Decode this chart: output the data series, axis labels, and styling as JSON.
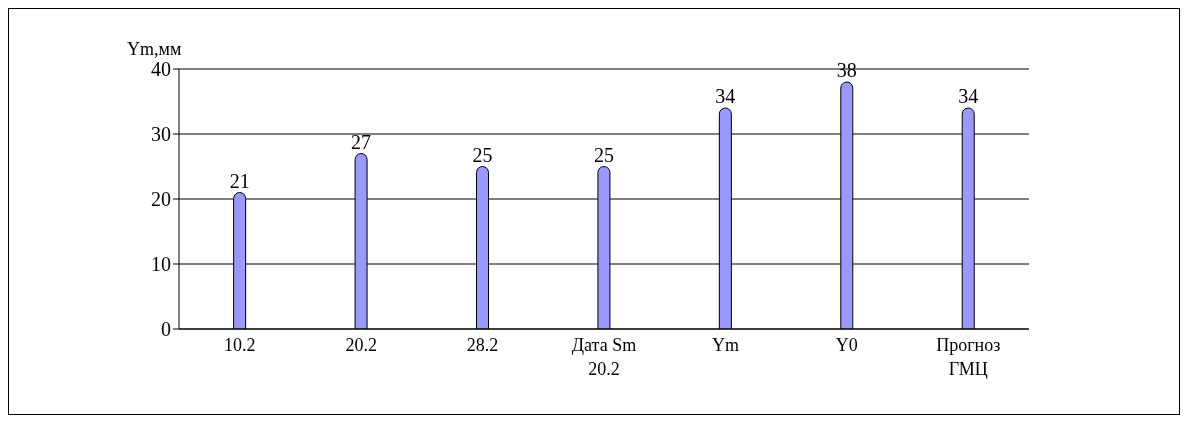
{
  "chart_data": {
    "type": "bar",
    "ylabel": "Ym,мм",
    "categories": [
      "10.2",
      "20.2",
      "28.2",
      "Дата Sm 20.2",
      "Ym",
      "Y0",
      "Прогноз ГМЦ"
    ],
    "values": [
      21,
      27,
      25,
      25,
      34,
      38,
      34
    ],
    "color": "#9999ff",
    "ylim": [
      0,
      40
    ],
    "yticks": [
      0,
      10,
      20,
      30,
      40
    ],
    "grid": "y",
    "data_labels": true
  }
}
